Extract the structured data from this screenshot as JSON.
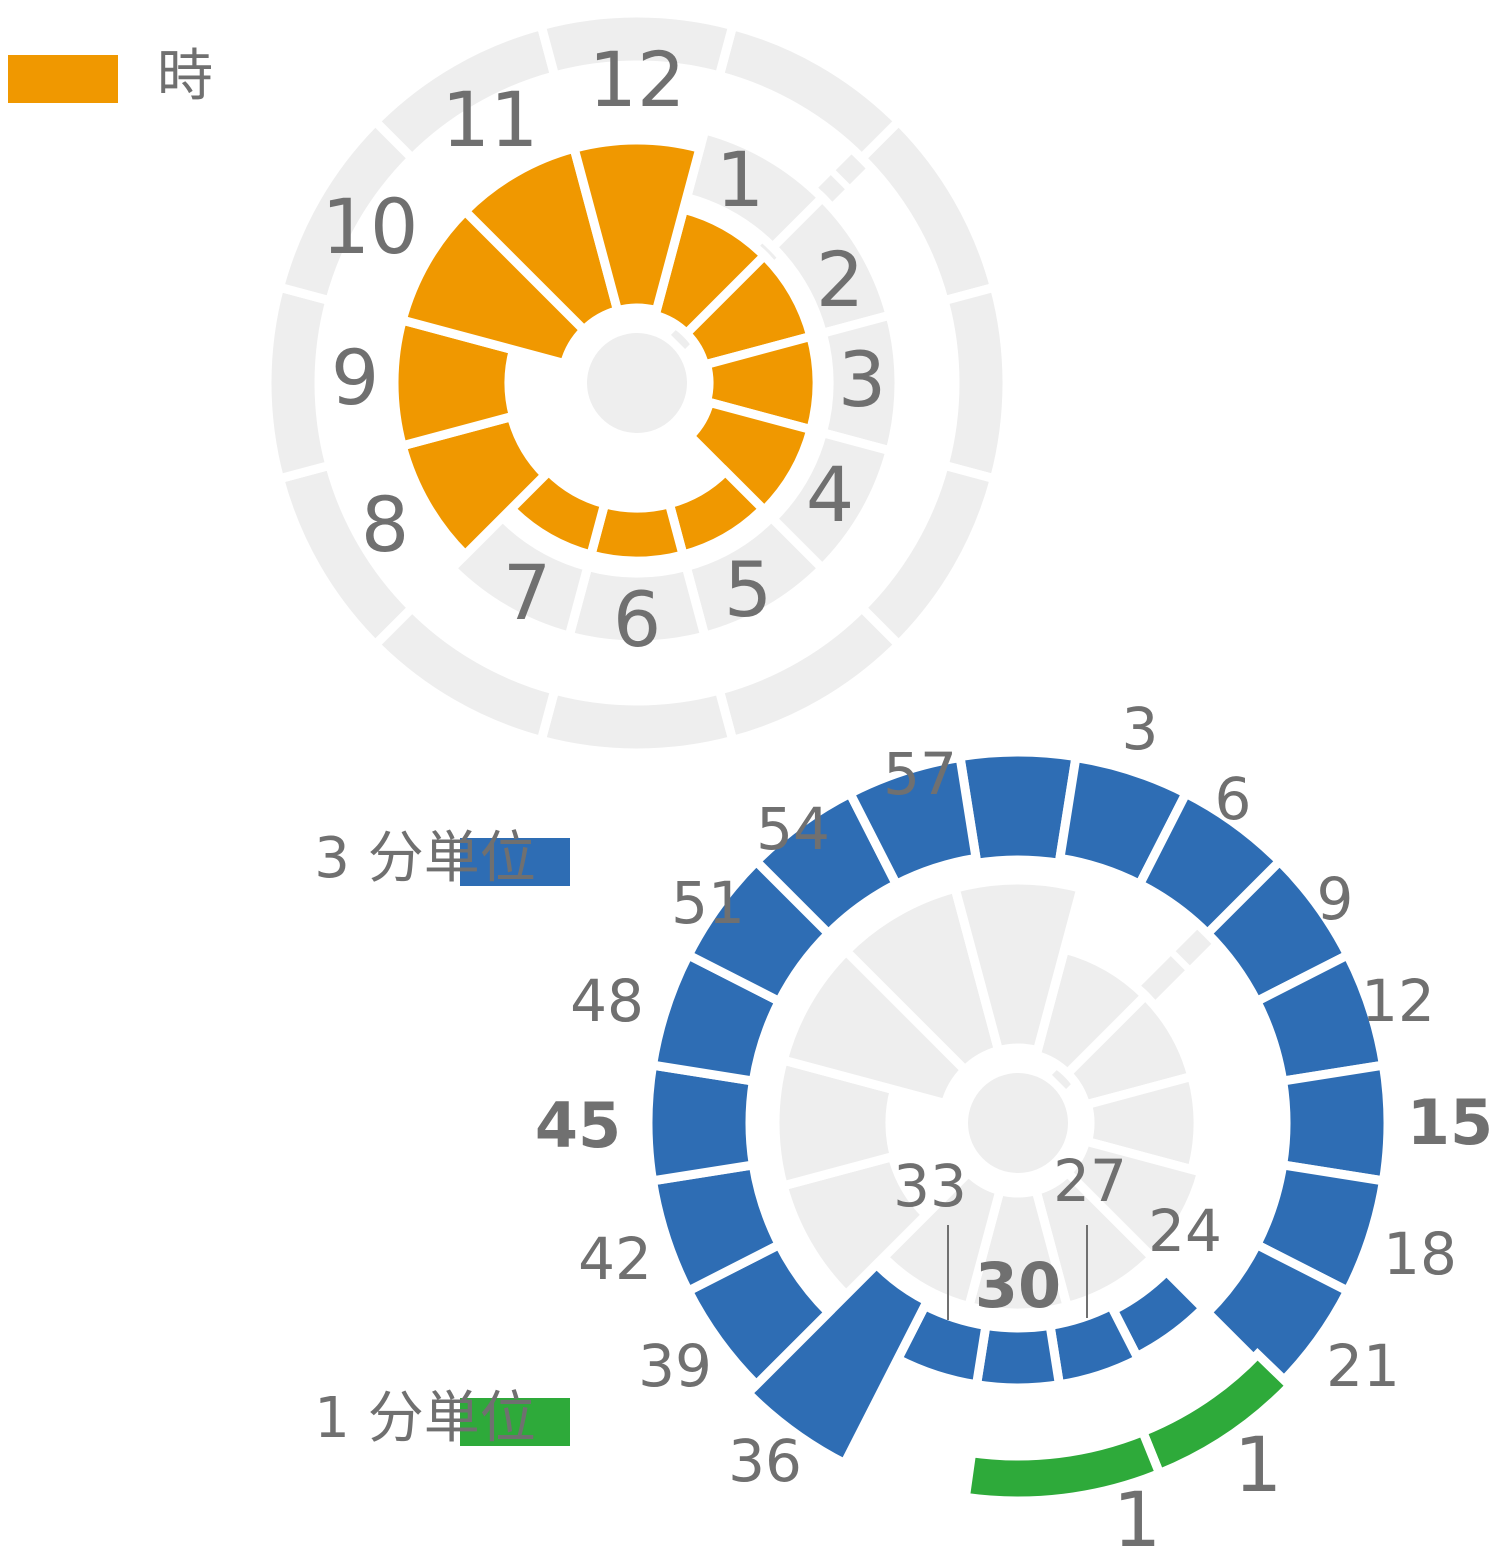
{
  "legend": [
    {
      "label": "時",
      "color": "#f09800"
    },
    {
      "label": "3 分単位",
      "color": "#2e6db4"
    },
    {
      "label": "1 分単位",
      "color": "#2eaa3a"
    }
  ],
  "hour_dial": {
    "labels": [
      "1",
      "2",
      "3",
      "4",
      "5",
      "6",
      "7",
      "8",
      "9",
      "10",
      "11",
      "12"
    ]
  },
  "minute_dial": {
    "labels": [
      {
        "text": "3"
      },
      {
        "text": "6"
      },
      {
        "text": "9"
      },
      {
        "text": "12"
      },
      {
        "text": "15",
        "bold": true
      },
      {
        "text": "18"
      },
      {
        "text": "21"
      },
      {
        "text": "24"
      },
      {
        "text": "27"
      },
      {
        "text": "30",
        "bold": true
      },
      {
        "text": "33"
      },
      {
        "text": "36"
      },
      {
        "text": "39"
      },
      {
        "text": "42"
      },
      {
        "text": "45",
        "bold": true
      },
      {
        "text": "48"
      },
      {
        "text": "51"
      },
      {
        "text": "54"
      },
      {
        "text": "57"
      }
    ]
  },
  "one_minute_dial": {
    "labels": [
      "1",
      "1"
    ]
  }
}
